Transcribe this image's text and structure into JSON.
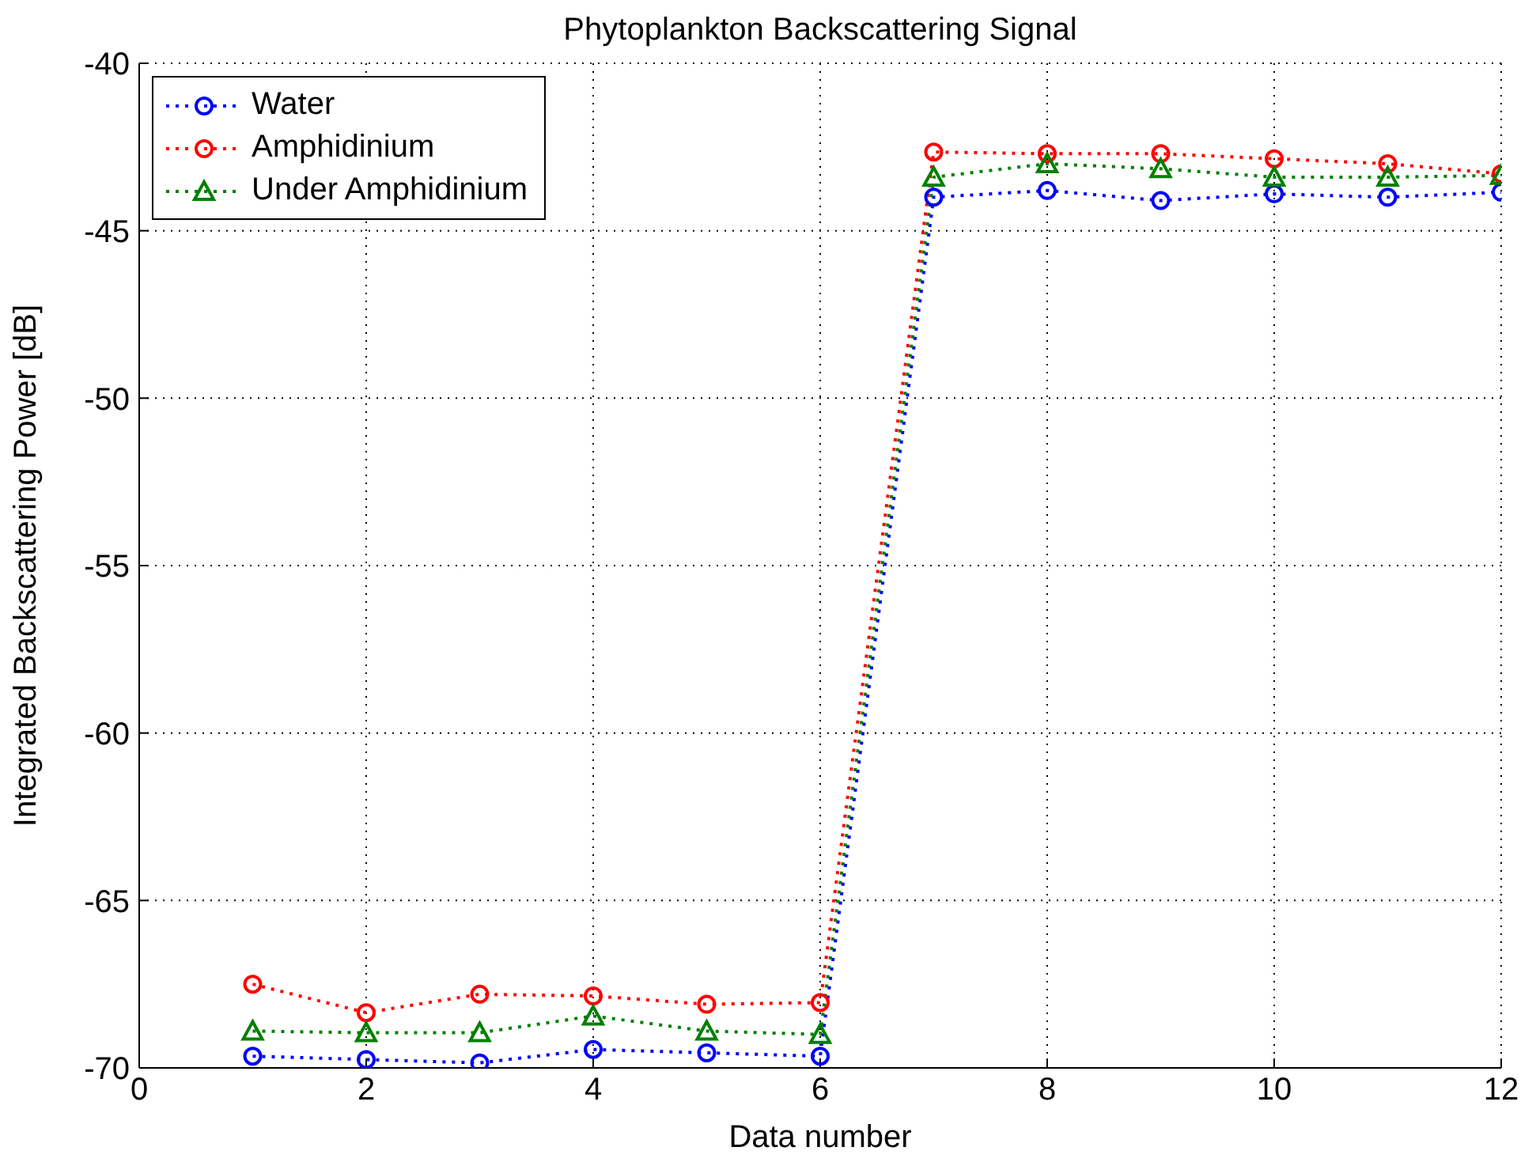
{
  "chart_data": {
    "type": "line",
    "title": "Phytoplankton Backscattering Signal",
    "xlabel": "Data number",
    "ylabel": "Integrated Backscattering Power [dB]",
    "x": [
      1,
      2,
      3,
      4,
      5,
      6,
      7,
      8,
      9,
      10,
      11,
      12
    ],
    "series": [
      {
        "name": "Water",
        "color": "#0000ff",
        "marker": "circle",
        "values": [
          -69.65,
          -69.75,
          -69.85,
          -69.45,
          -69.55,
          -69.65,
          -44.0,
          -43.8,
          -44.1,
          -43.9,
          -44.0,
          -43.85
        ]
      },
      {
        "name": "Amphidinium",
        "color": "#ff0000",
        "marker": "circle",
        "values": [
          -67.5,
          -68.35,
          -67.8,
          -67.85,
          -68.1,
          -68.05,
          -42.65,
          -42.7,
          -42.7,
          -42.85,
          -43.0,
          -43.3
        ]
      },
      {
        "name": "Under Amphidinium",
        "color": "#008000",
        "marker": "triangle",
        "values": [
          -68.9,
          -68.95,
          -68.95,
          -68.45,
          -68.9,
          -69.0,
          -43.4,
          -43.0,
          -43.15,
          -43.4,
          -43.4,
          -43.35
        ]
      }
    ],
    "xlim": [
      0,
      12
    ],
    "xticks": [
      0,
      2,
      4,
      6,
      8,
      10,
      12
    ],
    "ylim": [
      -70,
      -40
    ],
    "yticks": [
      -70,
      -65,
      -60,
      -55,
      -50,
      -45,
      -40
    ],
    "grid": true,
    "legend": "top left",
    "line_style": "dotted"
  }
}
